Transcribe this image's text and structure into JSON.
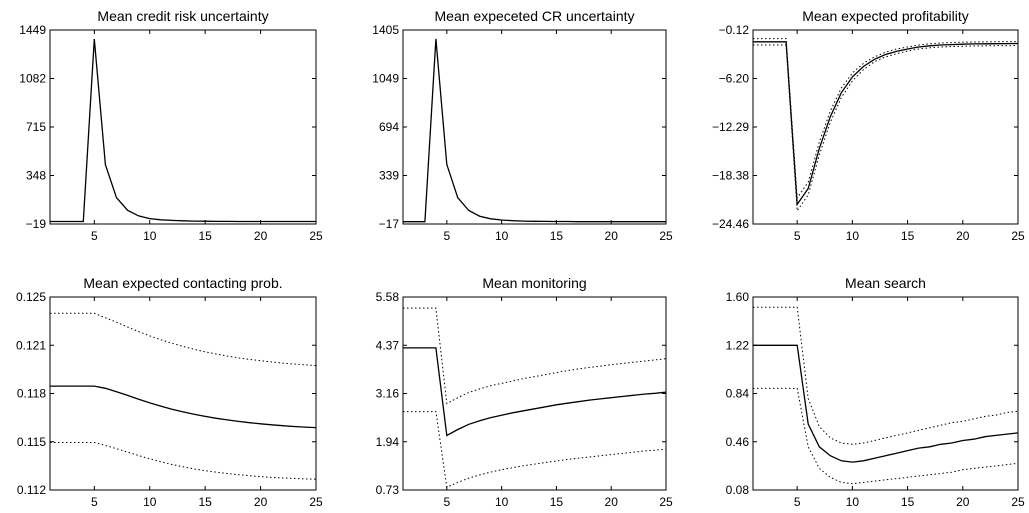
{
  "chart_data": [
    {
      "type": "line",
      "title": "Mean credit risk uncertainty",
      "xlim": [
        1,
        25
      ],
      "ylim": [
        -19,
        1449
      ],
      "xticks": [
        "5",
        "10",
        "15",
        "20",
        "25"
      ],
      "yticks": [
        "1449",
        "1082",
        "715",
        "348",
        "−19"
      ],
      "grid": false,
      "x": [
        1,
        2,
        3,
        4,
        5,
        6,
        7,
        8,
        9,
        10,
        11,
        12,
        13,
        14,
        15,
        16,
        17,
        18,
        19,
        20,
        21,
        22,
        23,
        24,
        25
      ],
      "series": [
        {
          "values": [
            0,
            0,
            0,
            0,
            1380,
            430,
            180,
            85,
            42,
            22,
            13,
            8,
            5,
            3,
            2,
            1,
            1,
            0,
            0,
            0,
            0,
            0,
            0,
            0,
            0
          ]
        }
      ]
    },
    {
      "type": "line",
      "title": "Mean expeceted CR uncertainty",
      "xlim": [
        1,
        25
      ],
      "ylim": [
        -17,
        1405
      ],
      "xticks": [
        "5",
        "10",
        "15",
        "20",
        "25"
      ],
      "yticks": [
        "1405",
        "1049",
        "694",
        "339",
        "−17"
      ],
      "grid": false,
      "x": [
        1,
        2,
        3,
        4,
        5,
        6,
        7,
        8,
        9,
        10,
        11,
        12,
        13,
        14,
        15,
        16,
        17,
        18,
        19,
        20,
        21,
        22,
        23,
        24,
        25
      ],
      "series": [
        {
          "values": [
            0,
            0,
            0,
            1340,
            420,
            175,
            82,
            40,
            21,
            12,
            7,
            4,
            3,
            2,
            1,
            1,
            0,
            0,
            0,
            0,
            0,
            0,
            0,
            0,
            0
          ]
        }
      ]
    },
    {
      "type": "line",
      "title": "Mean expected profitability",
      "xlim": [
        1,
        25
      ],
      "ylim": [
        -24.46,
        -0.12
      ],
      "xticks": [
        "5",
        "10",
        "15",
        "20",
        "25"
      ],
      "yticks": [
        "−0.12",
        "−6.20",
        "−12.29",
        "−18.38",
        "−24.46"
      ],
      "grid": false,
      "x": [
        1,
        2,
        3,
        4,
        5,
        6,
        7,
        8,
        9,
        10,
        11,
        12,
        13,
        14,
        15,
        16,
        17,
        18,
        19,
        20,
        21,
        22,
        23,
        24,
        25
      ],
      "series": [
        {
          "values": [
            -1.6,
            -1.6,
            -1.6,
            -1.6,
            -22,
            -20,
            -15,
            -11,
            -8,
            -6,
            -4.7,
            -3.8,
            -3.2,
            -2.8,
            -2.5,
            -2.25,
            -2.1,
            -2.0,
            -1.95,
            -1.9,
            -1.87,
            -1.85,
            -1.84,
            -1.83,
            -1.82
          ]
        },
        {
          "values": [
            -1.2,
            -1.2,
            -1.2,
            -1.2,
            -21.2,
            -19.2,
            -14.2,
            -10.3,
            -7.4,
            -5.5,
            -4.3,
            -3.5,
            -2.9,
            -2.5,
            -2.25,
            -2.0,
            -1.85,
            -1.75,
            -1.7,
            -1.65,
            -1.62,
            -1.6,
            -1.59,
            -1.58,
            -1.57
          ]
        },
        {
          "values": [
            -2.0,
            -2.0,
            -2.0,
            -2.0,
            -22.8,
            -20.8,
            -15.8,
            -11.7,
            -8.6,
            -6.5,
            -5.1,
            -4.1,
            -3.5,
            -3.1,
            -2.75,
            -2.5,
            -2.35,
            -2.25,
            -2.2,
            -2.15,
            -2.12,
            -2.1,
            -2.09,
            -2.08,
            -2.07
          ]
        }
      ]
    },
    {
      "type": "line",
      "title": "Mean expected contacting prob.",
      "xlim": [
        1,
        25
      ],
      "ylim": [
        0.112,
        0.125
      ],
      "xticks": [
        "5",
        "10",
        "15",
        "20",
        "25"
      ],
      "yticks": [
        "0.125",
        "0.121",
        "0.118",
        "0.115",
        "0.112"
      ],
      "grid": false,
      "x": [
        1,
        2,
        3,
        4,
        5,
        6,
        7,
        8,
        9,
        10,
        11,
        12,
        13,
        14,
        15,
        16,
        17,
        18,
        19,
        20,
        21,
        22,
        23,
        24,
        25
      ],
      "series": [
        {
          "values": [
            0.119,
            0.119,
            0.119,
            0.119,
            0.119,
            0.11885,
            0.11862,
            0.11837,
            0.11811,
            0.11787,
            0.11765,
            0.11744,
            0.11726,
            0.1171,
            0.11696,
            0.11683,
            0.11672,
            0.11662,
            0.11653,
            0.11646,
            0.11639,
            0.11633,
            0.11628,
            0.11624,
            0.1162
          ]
        },
        {
          "values": [
            0.1239,
            0.1239,
            0.1239,
            0.1239,
            0.1239,
            0.1236,
            0.1233,
            0.12298,
            0.12267,
            0.12238,
            0.12212,
            0.12188,
            0.12167,
            0.12148,
            0.12131,
            0.12116,
            0.12102,
            0.1209,
            0.1208,
            0.12071,
            0.12062,
            0.12055,
            0.12049,
            0.12043,
            0.12038
          ]
        },
        {
          "values": [
            0.1152,
            0.1152,
            0.1152,
            0.1152,
            0.1152,
            0.115,
            0.11478,
            0.11455,
            0.11432,
            0.1141,
            0.1139,
            0.11372,
            0.11356,
            0.11342,
            0.1133,
            0.1132,
            0.11311,
            0.11303,
            0.11296,
            0.1129,
            0.11285,
            0.11281,
            0.11278,
            0.11275,
            0.11273
          ]
        }
      ]
    },
    {
      "type": "line",
      "title": "Mean monitoring",
      "xlim": [
        1,
        25
      ],
      "ylim": [
        0.73,
        5.58
      ],
      "xticks": [
        "5",
        "10",
        "15",
        "20",
        "25"
      ],
      "yticks": [
        "5.58",
        "4.37",
        "3.16",
        "1.94",
        "0.73"
      ],
      "grid": false,
      "x": [
        1,
        2,
        3,
        4,
        5,
        6,
        7,
        8,
        9,
        10,
        11,
        12,
        13,
        14,
        15,
        16,
        17,
        18,
        19,
        20,
        21,
        22,
        23,
        24,
        25
      ],
      "series": [
        {
          "values": [
            4.3,
            4.3,
            4.3,
            4.3,
            2.1,
            2.25,
            2.38,
            2.47,
            2.55,
            2.61,
            2.67,
            2.72,
            2.77,
            2.82,
            2.87,
            2.91,
            2.95,
            2.99,
            3.02,
            3.05,
            3.08,
            3.11,
            3.14,
            3.16,
            3.19
          ]
        },
        {
          "values": [
            5.3,
            5.3,
            5.3,
            5.3,
            2.9,
            3.05,
            3.18,
            3.27,
            3.35,
            3.41,
            3.47,
            3.53,
            3.58,
            3.63,
            3.68,
            3.73,
            3.77,
            3.81,
            3.84,
            3.88,
            3.91,
            3.94,
            3.97,
            4.0,
            4.03
          ]
        },
        {
          "values": [
            2.7,
            2.7,
            2.7,
            2.7,
            0.8,
            0.92,
            1.03,
            1.11,
            1.18,
            1.24,
            1.29,
            1.34,
            1.38,
            1.42,
            1.46,
            1.5,
            1.53,
            1.56,
            1.59,
            1.62,
            1.65,
            1.68,
            1.71,
            1.73,
            1.76
          ]
        }
      ]
    },
    {
      "type": "line",
      "title": "Mean search",
      "xlim": [
        1,
        25
      ],
      "ylim": [
        0.08,
        1.6
      ],
      "xticks": [
        "5",
        "10",
        "15",
        "20",
        "25"
      ],
      "yticks": [
        "1.60",
        "1.22",
        "0.84",
        "0.46",
        "0.08"
      ],
      "grid": false,
      "x": [
        1,
        2,
        3,
        4,
        5,
        6,
        7,
        8,
        9,
        10,
        11,
        12,
        13,
        14,
        15,
        16,
        17,
        18,
        19,
        20,
        21,
        22,
        23,
        24,
        25
      ],
      "series": [
        {
          "values": [
            1.22,
            1.22,
            1.22,
            1.22,
            1.22,
            0.6,
            0.42,
            0.35,
            0.31,
            0.3,
            0.31,
            0.33,
            0.35,
            0.37,
            0.39,
            0.41,
            0.42,
            0.44,
            0.45,
            0.47,
            0.48,
            0.5,
            0.51,
            0.52,
            0.53
          ]
        },
        {
          "values": [
            1.52,
            1.52,
            1.52,
            1.52,
            1.52,
            0.8,
            0.58,
            0.49,
            0.45,
            0.44,
            0.45,
            0.47,
            0.49,
            0.51,
            0.53,
            0.55,
            0.57,
            0.59,
            0.61,
            0.62,
            0.64,
            0.66,
            0.67,
            0.69,
            0.7
          ]
        },
        {
          "values": [
            0.88,
            0.88,
            0.88,
            0.88,
            0.88,
            0.42,
            0.25,
            0.18,
            0.14,
            0.13,
            0.14,
            0.15,
            0.16,
            0.17,
            0.18,
            0.19,
            0.2,
            0.21,
            0.22,
            0.24,
            0.25,
            0.26,
            0.27,
            0.28,
            0.29
          ]
        }
      ]
    }
  ]
}
